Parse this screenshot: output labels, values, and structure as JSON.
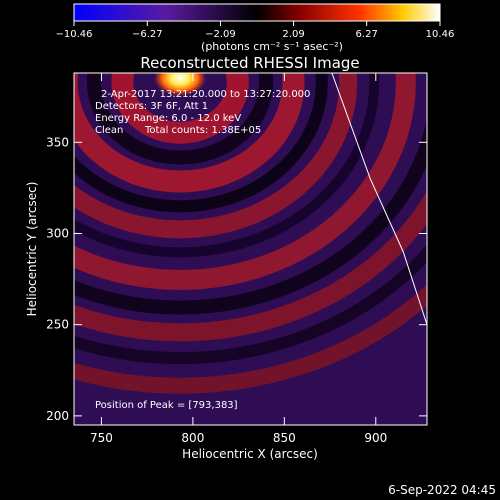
{
  "chart_data": {
    "type": "heatmap",
    "title": "Reconstructed RHESSI Image",
    "xlabel": "Heliocentric X (arcsec)",
    "ylabel": "Heliocentric Y (arcsec)",
    "xlim": [
      735,
      928
    ],
    "ylim": [
      195,
      388
    ],
    "xticks": [
      "750",
      "800",
      "850",
      "900"
    ],
    "yticks": [
      "200",
      "250",
      "300",
      "350"
    ],
    "colorbar": {
      "ticks": [
        "−10.46",
        "−6.27",
        "−2.09",
        "2.09",
        "6.27",
        "10.46"
      ],
      "range": [
        -10.46,
        10.46
      ],
      "unit_text": "(photons cm⁻² s⁻¹ asec⁻²)"
    },
    "annotations": {
      "time_range": "2-Apr-2017 13:21:20.000 to 13:27:20.000",
      "detectors": "Detectors: 3F 6F, Att 1",
      "energy": "Energy Range: 6.0 - 12.0 keV",
      "clean_label": "Clean",
      "counts": "Total counts: 1.38E+05",
      "peak": "Position of Peak = [793,383]"
    },
    "peak": {
      "x": 793,
      "y": 383
    },
    "limb_curve": [
      [
        876,
        388
      ],
      [
        897,
        330
      ],
      [
        915,
        290
      ],
      [
        928,
        250
      ]
    ],
    "footer": "6-Sep-2022 04:45"
  },
  "colors": {
    "background": "#000000",
    "text": "#ffffff",
    "colormap": [
      "#0000ff",
      "#4b0082",
      "#000000",
      "#8b0000",
      "#ff3300",
      "#ffdd00",
      "#ffffff"
    ]
  }
}
